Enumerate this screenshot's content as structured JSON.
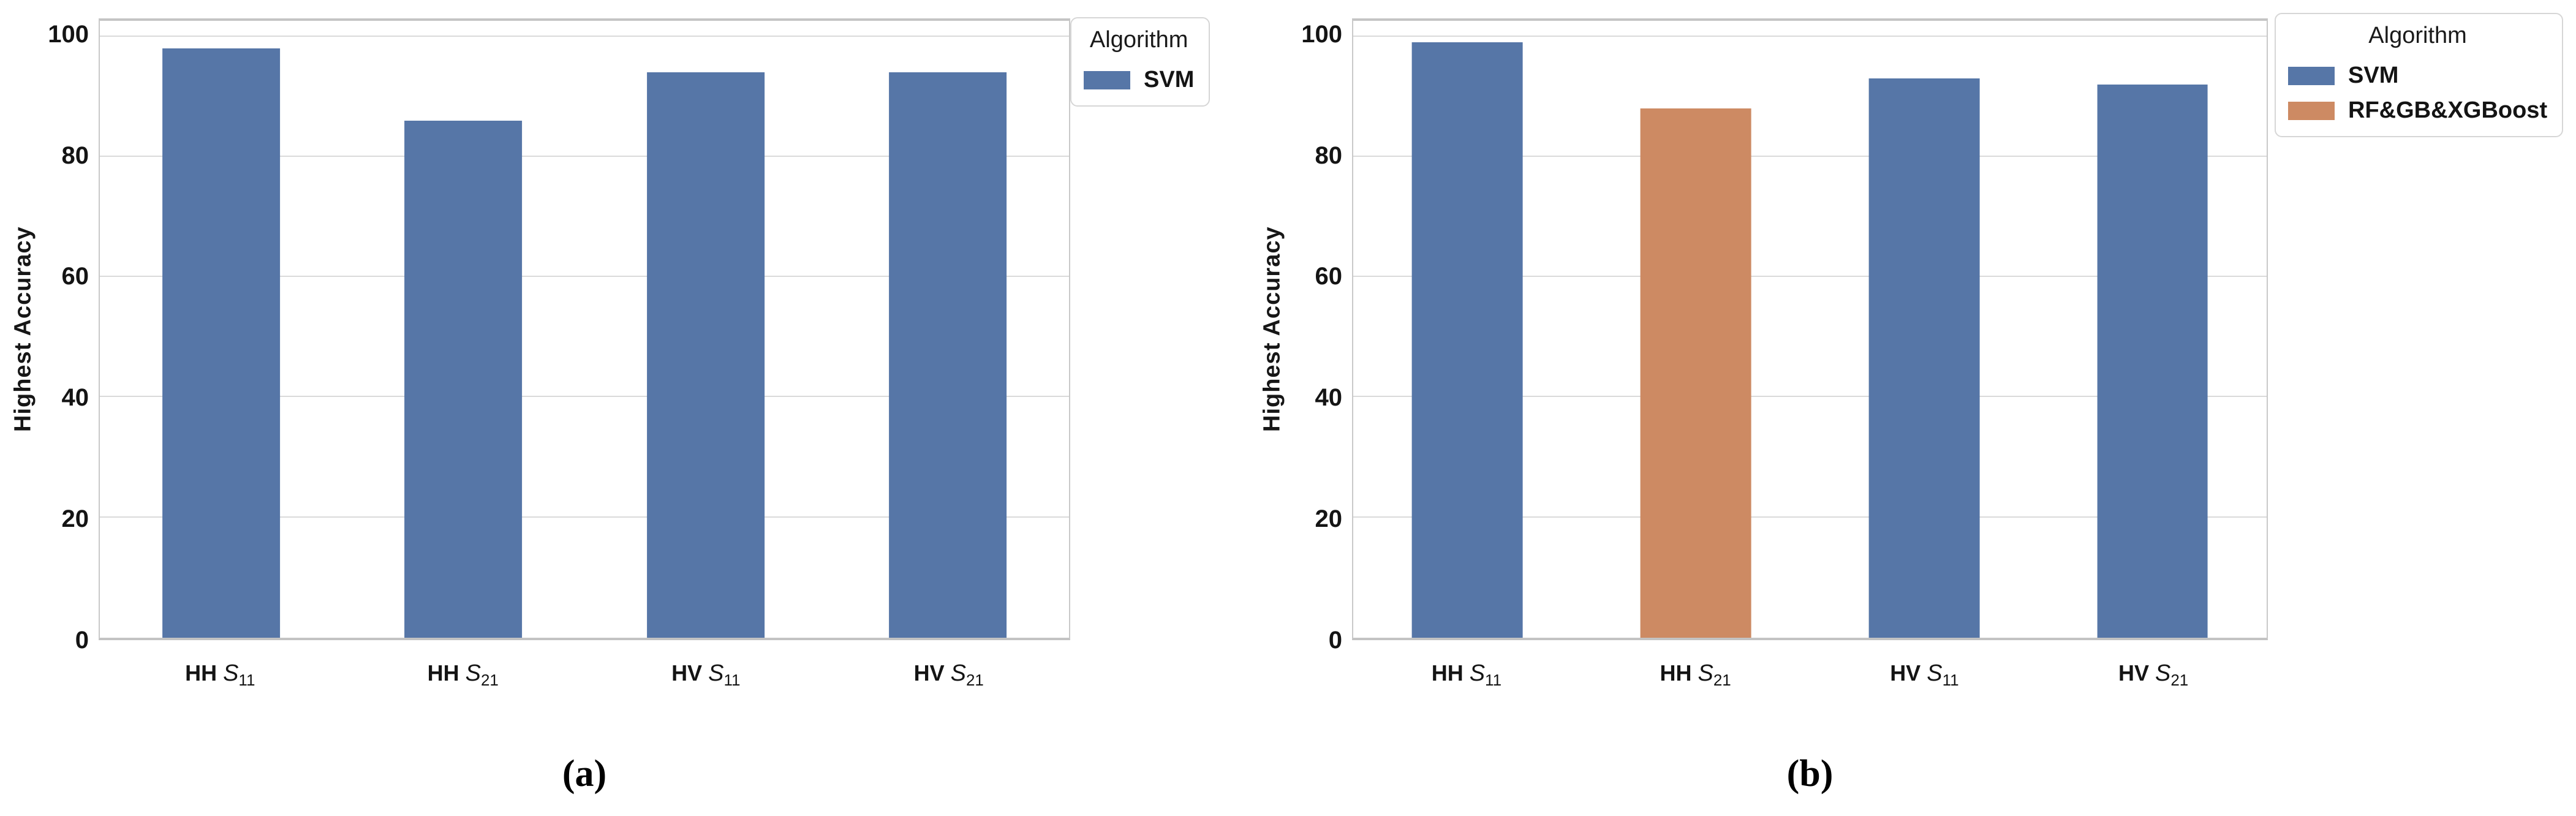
{
  "figure": {
    "background": "#ffffff",
    "text_color": "#141414",
    "grid_color": "#dadada",
    "spine_color": "#c9c9c9"
  },
  "colors": {
    "svm_blue": "#5676a7",
    "rf_orange": "#cd8a63"
  },
  "chart_data": [
    {
      "type": "bar",
      "panel": "a",
      "caption": "(a)",
      "ylabel": "Highest Accuracy",
      "ylim": [
        0,
        102.6
      ],
      "yticks": [
        0,
        20,
        40,
        60,
        80,
        100
      ],
      "grid": true,
      "legend_position": "top-right-outside",
      "categories_plain": [
        "HH S11",
        "HH S21",
        "HV S11",
        "HV S21"
      ],
      "categories": [
        {
          "pre": "HH",
          "base": "S",
          "sub": "11"
        },
        {
          "pre": "HH",
          "base": "S",
          "sub": "21"
        },
        {
          "pre": "HV",
          "base": "S",
          "sub": "11"
        },
        {
          "pre": "HV",
          "base": "S",
          "sub": "21"
        }
      ],
      "series": [
        {
          "name": "SVM",
          "color": "#5676a7",
          "values": [
            98,
            86,
            94,
            94
          ]
        }
      ],
      "bar_values": [
        98,
        86,
        94,
        94
      ],
      "bar_colors": [
        "#5676a7",
        "#5676a7",
        "#5676a7",
        "#5676a7"
      ],
      "legend": {
        "title": "Algorithm",
        "entries": [
          {
            "label": "SVM",
            "color": "#5676a7"
          }
        ]
      }
    },
    {
      "type": "bar",
      "panel": "b",
      "caption": "(b)",
      "ylabel": "Highest Accuracy",
      "ylim": [
        0,
        102.6
      ],
      "yticks": [
        0,
        20,
        40,
        60,
        80,
        100
      ],
      "grid": true,
      "legend_position": "top-right-outside",
      "categories_plain": [
        "HH S11",
        "HH S21",
        "HV S11",
        "HV S21"
      ],
      "categories": [
        {
          "pre": "HH",
          "base": "S",
          "sub": "11"
        },
        {
          "pre": "HH",
          "base": "S",
          "sub": "21"
        },
        {
          "pre": "HV",
          "base": "S",
          "sub": "11"
        },
        {
          "pre": "HV",
          "base": "S",
          "sub": "21"
        }
      ],
      "series": [
        {
          "name": "SVM",
          "color": "#5676a7",
          "values": [
            99,
            null,
            93,
            92
          ]
        },
        {
          "name": "RF&GB&XGBoost",
          "color": "#cd8a63",
          "values": [
            null,
            88,
            null,
            null
          ]
        }
      ],
      "bar_values": [
        99,
        88,
        93,
        92
      ],
      "bar_colors": [
        "#5676a7",
        "#cd8a63",
        "#5676a7",
        "#5676a7"
      ],
      "legend": {
        "title": "Algorithm",
        "entries": [
          {
            "label": "SVM",
            "color": "#5676a7"
          },
          {
            "label": "RF&GB&XGBoost",
            "color": "#cd8a63"
          }
        ]
      }
    }
  ]
}
